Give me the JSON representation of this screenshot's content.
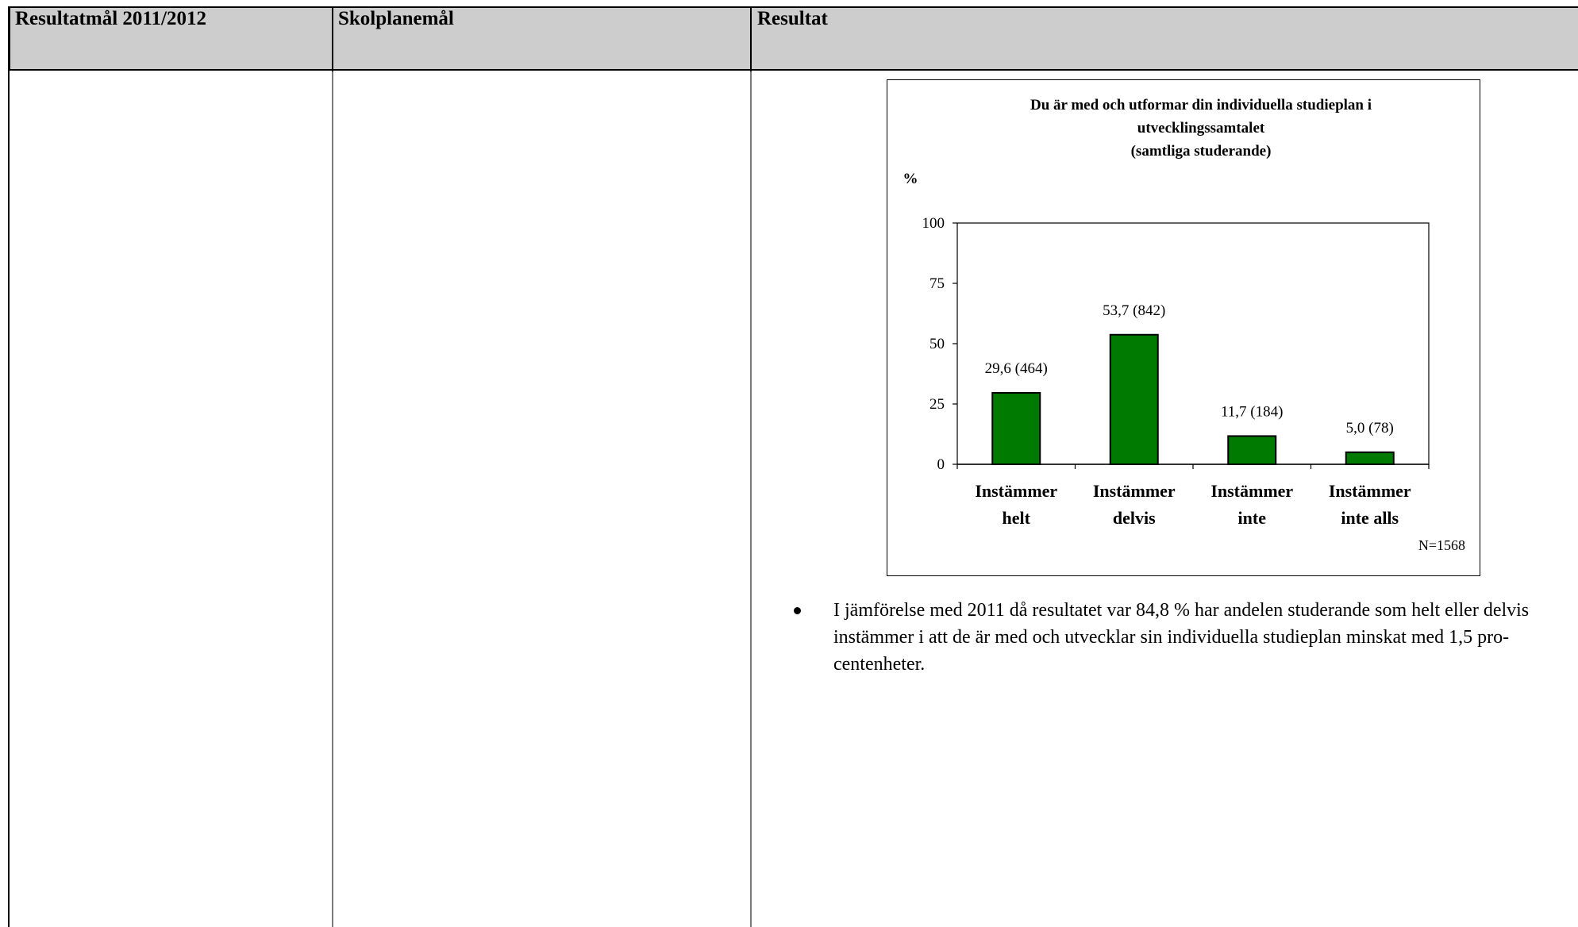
{
  "table": {
    "headers": [
      "Resultatmål 2011/2012",
      "Skolplanemål",
      "Resultat"
    ]
  },
  "chart_data": {
    "type": "bar",
    "title": [
      "Du är med och utformar din individuella studieplan i",
      "utvecklingssamtalet",
      "(samtliga studerande)"
    ],
    "ylabel": "%",
    "ylim": [
      0,
      100
    ],
    "yticks": [
      "100",
      "75",
      "50",
      "25",
      "0"
    ],
    "categories": [
      [
        "Instämmer",
        "helt"
      ],
      [
        "Instämmer",
        "delvis"
      ],
      [
        "Instämmer",
        "inte"
      ],
      [
        "Instämmer",
        "inte alls"
      ]
    ],
    "values": [
      29.6,
      53.7,
      11.7,
      5.0
    ],
    "data_labels": [
      "29,6 (464)",
      "53,7 (842)",
      "11,7 (184)",
      "5,0 (78)"
    ],
    "note": "N=1568",
    "bar_color": "#007a00",
    "grid": false,
    "legend": "none"
  },
  "bullets": [
    {
      "lines": [
        "I jämförelse med 2011 då resultatet var 84,8 % har andelen studerande som helt eller delvis",
        "instämmer i att de är med och utvecklar sin individuella studieplan minskat med 1,5 pro-",
        "centenheter."
      ]
    }
  ]
}
